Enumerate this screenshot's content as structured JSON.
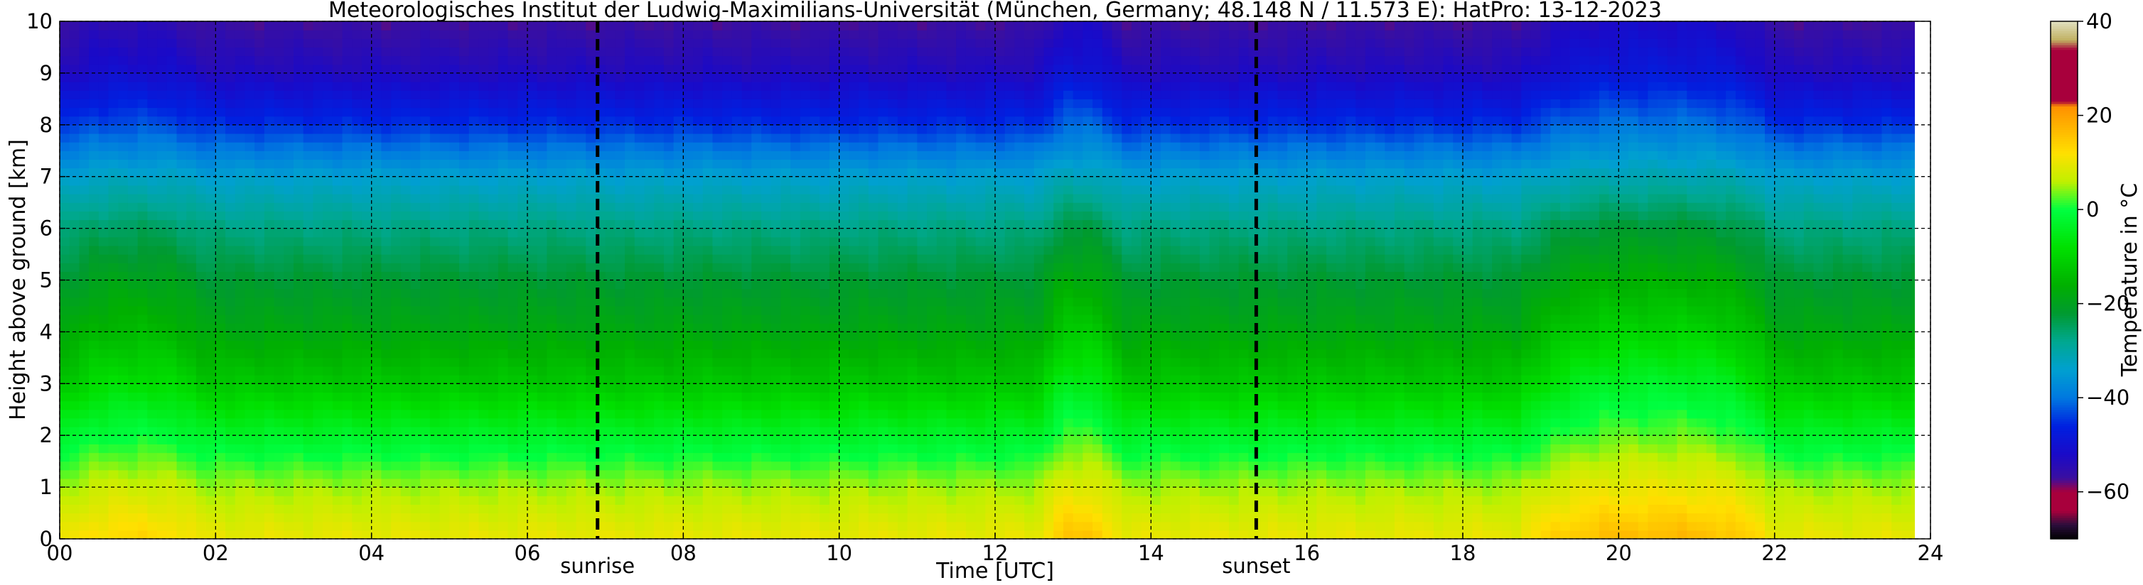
{
  "chart_data": {
    "type": "heatmap",
    "title": "Meteorologisches Institut der Ludwig-Maximilians-Universität (München, Germany; 48.148 N / 11.573 E):    HatPro: 13-12-2023",
    "xlabel": "Time [UTC]",
    "ylabel": "Height above ground [km]",
    "colorbar_label": "Temperature in $^\\circ$C",
    "colorbar_label_text": "Temperature in °C",
    "xlim": [
      0,
      24
    ],
    "ylim": [
      0,
      10
    ],
    "x_ticks": [
      0,
      2,
      4,
      6,
      8,
      10,
      12,
      14,
      16,
      18,
      20,
      22,
      24
    ],
    "x_tick_labels": [
      "00",
      "02",
      "04",
      "06",
      "08",
      "10",
      "12",
      "14",
      "16",
      "18",
      "20",
      "22",
      "24"
    ],
    "y_ticks": [
      0,
      1,
      2,
      3,
      4,
      5,
      6,
      7,
      8,
      9,
      10
    ],
    "y_tick_labels": [
      "0",
      "1",
      "2",
      "3",
      "4",
      "5",
      "6",
      "7",
      "8",
      "9",
      "10"
    ],
    "grid": true,
    "colorbar_range": [
      -70,
      40
    ],
    "colorbar_ticks": [
      -60,
      -40,
      -20,
      0,
      20,
      40
    ],
    "colorbar_tick_labels": [
      "−60",
      "−40",
      "−20",
      "0",
      "20",
      "40"
    ],
    "colormap": [
      {
        "t": -70,
        "color": "#000000"
      },
      {
        "t": -67,
        "color": "#2a0e3c"
      },
      {
        "t": -64,
        "color": "#a8003c"
      },
      {
        "t": -60,
        "color": "#a8003c"
      },
      {
        "t": -57,
        "color": "#3a0fa0"
      },
      {
        "t": -52,
        "color": "#1a0ac8"
      },
      {
        "t": -46,
        "color": "#0020e0"
      },
      {
        "t": -40,
        "color": "#0078e0"
      },
      {
        "t": -34,
        "color": "#00a0d0"
      },
      {
        "t": -28,
        "color": "#00a890"
      },
      {
        "t": -22,
        "color": "#009a30"
      },
      {
        "t": -16,
        "color": "#00b000"
      },
      {
        "t": -8,
        "color": "#00e000"
      },
      {
        "t": 0,
        "color": "#00ff40"
      },
      {
        "t": 6,
        "color": "#c0f000"
      },
      {
        "t": 12,
        "color": "#ffe000"
      },
      {
        "t": 18,
        "color": "#ffb000"
      },
      {
        "t": 22,
        "color": "#ff9000"
      },
      {
        "t": 23,
        "color": "#a8003c"
      },
      {
        "t": 34,
        "color": "#a8003c"
      },
      {
        "t": 36,
        "color": "#c0b060"
      },
      {
        "t": 40,
        "color": "#e0e0c0"
      }
    ],
    "temperature_profile": {
      "description": "temperature (°C) by height (km), base state and warm-episode state",
      "heights_km": [
        0,
        1,
        2,
        3,
        4,
        5,
        6,
        7,
        8,
        9,
        10
      ],
      "base_temps_c": [
        10,
        5,
        -3,
        -12,
        -18,
        -22,
        -27,
        -34,
        -45,
        -53,
        -57
      ],
      "warm_temps_c": [
        17,
        10,
        3,
        -3,
        -10,
        -16,
        -22,
        -31,
        -40,
        -48,
        -52
      ]
    },
    "warm_episodes": [
      {
        "start": 0.1,
        "end": 1.8,
        "peak": 0.95,
        "strength": 0.45
      },
      {
        "start": 12.6,
        "end": 13.6,
        "peak": 13.05,
        "strength": 0.8
      },
      {
        "start": 18.7,
        "end": 22.0,
        "peak": 20.6,
        "strength": 1.0
      }
    ],
    "no_data_after": 23.8,
    "annotations": [
      {
        "type": "vline",
        "x": 6.9,
        "label": "sunrise"
      },
      {
        "type": "vline",
        "x": 15.35,
        "label": "sunset"
      }
    ]
  }
}
